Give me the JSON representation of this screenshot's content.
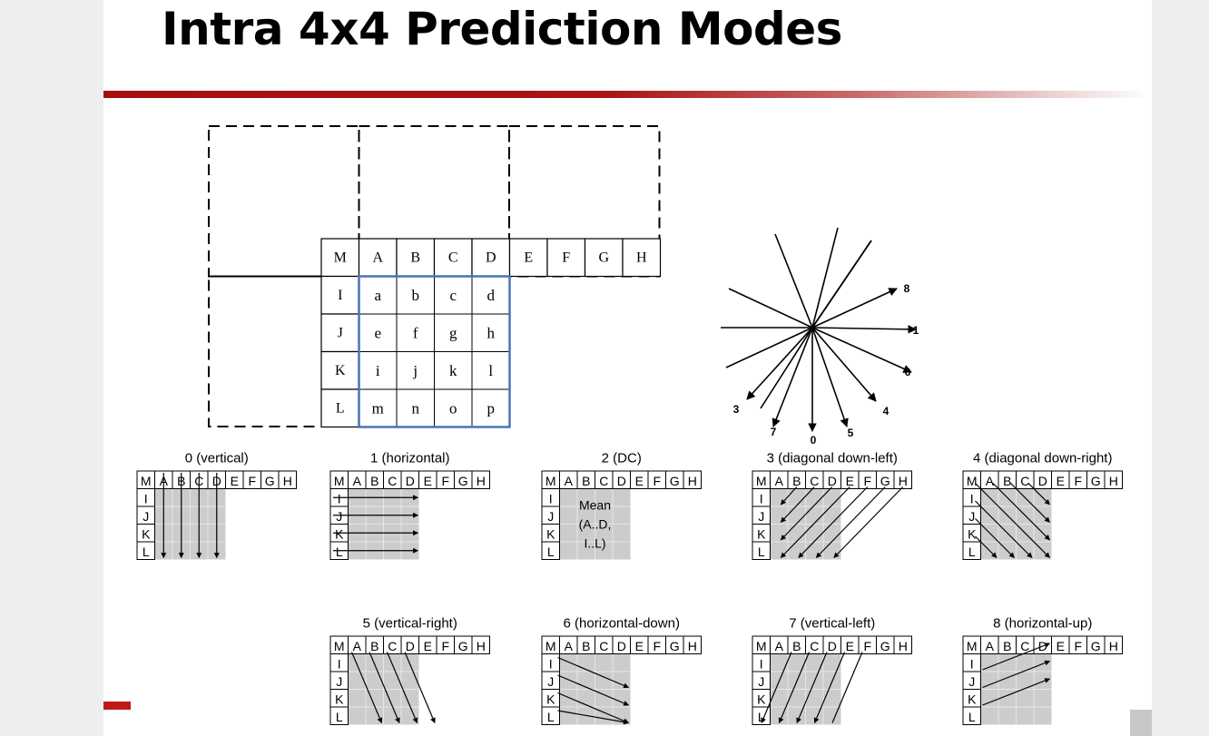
{
  "slide": {
    "title": "Intra 4x4 Prediction Modes"
  },
  "main_grid": {
    "top_row": [
      "M",
      "A",
      "B",
      "C",
      "D",
      "E",
      "F",
      "G",
      "H"
    ],
    "left_col": [
      "I",
      "J",
      "K",
      "L"
    ],
    "block_rows": [
      [
        "a",
        "b",
        "c",
        "d"
      ],
      [
        "e",
        "f",
        "g",
        "h"
      ],
      [
        "i",
        "j",
        "k",
        "l"
      ],
      [
        "m",
        "n",
        "o",
        "p"
      ]
    ]
  },
  "direction_chart": {
    "labels": [
      "8",
      "1",
      "6",
      "3",
      "4",
      "7",
      "0",
      "5"
    ]
  },
  "mode_panels": [
    {
      "label": "0 (vertical)"
    },
    {
      "label": "1 (horizontal)"
    },
    {
      "label": "2 (DC)",
      "inner_text": [
        "Mean",
        "(A..D,",
        "I..L)"
      ]
    },
    {
      "label": "3 (diagonal down-left)"
    },
    {
      "label": "4 (diagonal down-right)"
    },
    {
      "label": "5 (vertical-right)"
    },
    {
      "label": "6 (horizontal-down)"
    },
    {
      "label": "7 (vertical-left)"
    },
    {
      "label": "8 (horizontal-up)"
    }
  ],
  "colors": {
    "title_bar": "#a40f10",
    "block_outline": "#4a74b5",
    "shaded_block": "#cccccc"
  }
}
